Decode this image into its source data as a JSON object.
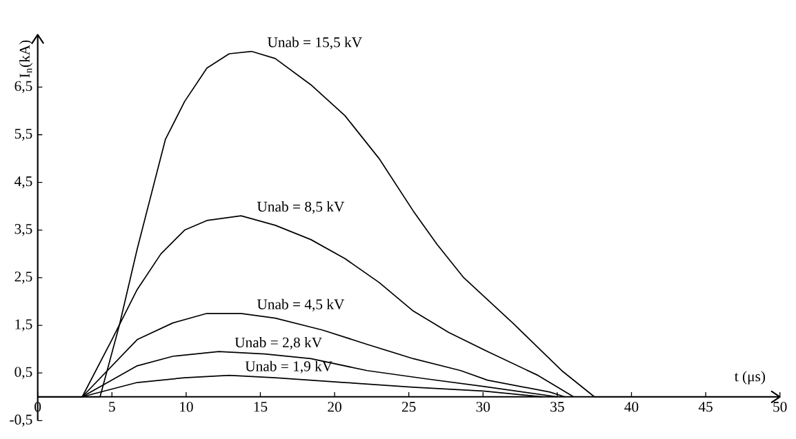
{
  "chart_data": {
    "type": "line",
    "xlabel": "t (μs)",
    "ylabel": "I$_{n}$(kA)",
    "xlim": [
      0,
      50
    ],
    "ylim": [
      -0.5,
      7.6
    ],
    "xticks": [
      0,
      5,
      10,
      15,
      20,
      25,
      30,
      35,
      40,
      45,
      50
    ],
    "yticks": [
      {
        "value": -0.5,
        "label": "-0,5"
      },
      {
        "value": 0.5,
        "label": "0,5"
      },
      {
        "value": 1.5,
        "label": "1,5"
      },
      {
        "value": 2.5,
        "label": "2,5"
      },
      {
        "value": 3.5,
        "label": "3,5"
      },
      {
        "value": 4.5,
        "label": "4,5"
      },
      {
        "value": 5.5,
        "label": "5,5"
      },
      {
        "value": 6.5,
        "label": "6,5"
      }
    ],
    "series": [
      {
        "name": "Unab = 15,5 kV",
        "color": "#000000",
        "x": [
          0,
          4.2,
          5.5,
          6.7,
          8.6,
          9.9,
          11.4,
          12.9,
          14.4,
          16.0,
          18.4,
          20.7,
          23.0,
          25.3,
          26.9,
          28.7,
          32.0,
          35.3,
          37.5,
          50
        ],
        "values": [
          0,
          0,
          1.5,
          3.1,
          5.4,
          6.2,
          6.9,
          7.2,
          7.25,
          7.1,
          6.55,
          5.9,
          5.0,
          3.9,
          3.2,
          2.5,
          1.55,
          0.55,
          0,
          0
        ]
      },
      {
        "name": "Unab = 8,5 kV",
        "color": "#000000",
        "x": [
          0,
          3.0,
          5.0,
          6.7,
          8.3,
          9.9,
          11.4,
          13.7,
          16.0,
          18.4,
          20.7,
          23.0,
          25.3,
          27.7,
          30.3,
          33.7,
          36.1
        ],
        "values": [
          0,
          0,
          1.2,
          2.25,
          3.0,
          3.5,
          3.7,
          3.8,
          3.6,
          3.3,
          2.9,
          2.4,
          1.8,
          1.35,
          0.95,
          0.45,
          0
        ]
      },
      {
        "name": "Unab = 4,5 kV",
        "color": "#000000",
        "x": [
          0,
          3.0,
          6.7,
          9.1,
          11.4,
          13.7,
          16.0,
          19.2,
          22.2,
          25.3,
          28.5,
          30.3,
          34.5,
          35.5
        ],
        "values": [
          0,
          0,
          1.2,
          1.55,
          1.75,
          1.75,
          1.65,
          1.4,
          1.1,
          0.8,
          0.55,
          0.35,
          0.1,
          0
        ]
      },
      {
        "name": "Unab = 2,8 kV",
        "color": "#000000",
        "x": [
          0,
          3.0,
          6.7,
          9.1,
          12.2,
          15.3,
          18.4,
          22.2,
          26.1,
          30.0,
          35.0
        ],
        "values": [
          0,
          0,
          0.65,
          0.85,
          0.95,
          0.9,
          0.8,
          0.55,
          0.38,
          0.22,
          0
        ]
      },
      {
        "name": "Unab = 1,9 kV",
        "color": "#000000",
        "x": [
          0,
          3.0,
          6.7,
          9.9,
          12.9,
          16.0,
          20.7,
          25.3,
          30.0,
          34.0
        ],
        "values": [
          0,
          0,
          0.3,
          0.4,
          0.45,
          0.4,
          0.3,
          0.2,
          0.12,
          0
        ]
      }
    ]
  }
}
